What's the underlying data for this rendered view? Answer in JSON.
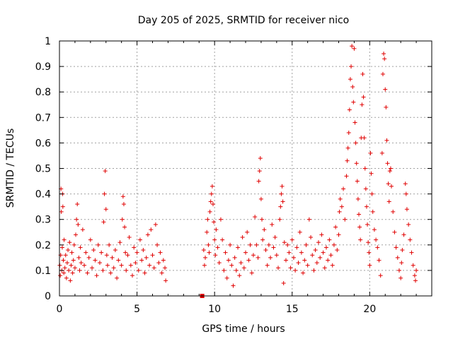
{
  "chart_data": {
    "type": "scatter",
    "title": "Day 205 of 2025, SRMTID for receiver nico",
    "xlabel": "GPS time / hours",
    "ylabel": "SRMTID / TECUs",
    "xlim": [
      0,
      24
    ],
    "ylim": [
      0,
      1
    ],
    "x_ticks": [
      0,
      5,
      10,
      15,
      20
    ],
    "x_tick_labels": [
      "0",
      "5",
      "10",
      "15",
      "20"
    ],
    "y_ticks": [
      0,
      0.1,
      0.2,
      0.3,
      0.4,
      0.5,
      0.6,
      0.7,
      0.8,
      0.9,
      1
    ],
    "y_tick_labels": [
      "0",
      "0.1",
      "0.2",
      "0.3",
      "0.4",
      "0.5",
      "0.6",
      "0.7",
      "0.8",
      "0.9",
      "1"
    ],
    "grid": true,
    "marker": "plus",
    "color": "#e00000",
    "outlier_marker": {
      "x": 9.2,
      "y": 0.0,
      "shape": "square"
    },
    "series": [
      {
        "name": "SRMTID",
        "points": [
          [
            0.02,
            0.12
          ],
          [
            0.05,
            0.08
          ],
          [
            0.08,
            0.16
          ],
          [
            0.1,
            0.42
          ],
          [
            0.12,
            0.33
          ],
          [
            0.15,
            0.1
          ],
          [
            0.18,
            0.19
          ],
          [
            0.2,
            0.4
          ],
          [
            0.22,
            0.35
          ],
          [
            0.25,
            0.14
          ],
          [
            0.28,
            0.09
          ],
          [
            0.3,
            0.22
          ],
          [
            0.35,
            0.11
          ],
          [
            0.4,
            0.16
          ],
          [
            0.45,
            0.07
          ],
          [
            0.5,
            0.13
          ],
          [
            0.55,
            0.18
          ],
          [
            0.6,
            0.1
          ],
          [
            0.65,
            0.21
          ],
          [
            0.7,
            0.06
          ],
          [
            0.75,
            0.12
          ],
          [
            0.8,
            0.17
          ],
          [
            0.85,
            0.09
          ],
          [
            0.9,
            0.14
          ],
          [
            0.95,
            0.2
          ],
          [
            1.0,
            0.11
          ],
          [
            1.05,
            0.24
          ],
          [
            1.1,
            0.3
          ],
          [
            1.15,
            0.36
          ],
          [
            1.2,
            0.28
          ],
          [
            1.25,
            0.15
          ],
          [
            1.3,
            0.1
          ],
          [
            1.35,
            0.19
          ],
          [
            1.4,
            0.13
          ],
          [
            1.5,
            0.26
          ],
          [
            1.6,
            0.12
          ],
          [
            1.7,
            0.17
          ],
          [
            1.8,
            0.09
          ],
          [
            1.9,
            0.15
          ],
          [
            2.0,
            0.22
          ],
          [
            2.1,
            0.11
          ],
          [
            2.2,
            0.18
          ],
          [
            2.3,
            0.14
          ],
          [
            2.4,
            0.08
          ],
          [
            2.5,
            0.2
          ],
          [
            2.6,
            0.13
          ],
          [
            2.7,
            0.17
          ],
          [
            2.8,
            0.1
          ],
          [
            2.85,
            0.29
          ],
          [
            2.9,
            0.4
          ],
          [
            2.95,
            0.49
          ],
          [
            3.0,
            0.34
          ],
          [
            3.05,
            0.16
          ],
          [
            3.1,
            0.12
          ],
          [
            3.2,
            0.2
          ],
          [
            3.3,
            0.09
          ],
          [
            3.4,
            0.15
          ],
          [
            3.5,
            0.11
          ],
          [
            3.6,
            0.18
          ],
          [
            3.7,
            0.07
          ],
          [
            3.8,
            0.14
          ],
          [
            3.9,
            0.21
          ],
          [
            4.0,
            0.12
          ],
          [
            4.05,
            0.3
          ],
          [
            4.1,
            0.39
          ],
          [
            4.15,
            0.36
          ],
          [
            4.2,
            0.27
          ],
          [
            4.25,
            0.17
          ],
          [
            4.3,
            0.1
          ],
          [
            4.4,
            0.16
          ],
          [
            4.5,
            0.23
          ],
          [
            4.6,
            0.12
          ],
          [
            4.7,
            0.08
          ],
          [
            4.8,
            0.19
          ],
          [
            4.9,
            0.13
          ],
          [
            5.0,
            0.17
          ],
          [
            5.1,
            0.1
          ],
          [
            5.2,
            0.22
          ],
          [
            5.3,
            0.14
          ],
          [
            5.4,
            0.18
          ],
          [
            5.5,
            0.09
          ],
          [
            5.6,
            0.15
          ],
          [
            5.7,
            0.24
          ],
          [
            5.8,
            0.12
          ],
          [
            5.9,
            0.26
          ],
          [
            6.0,
            0.16
          ],
          [
            6.1,
            0.11
          ],
          [
            6.2,
            0.28
          ],
          [
            6.3,
            0.2
          ],
          [
            6.4,
            0.13
          ],
          [
            6.5,
            0.17
          ],
          [
            6.6,
            0.09
          ],
          [
            6.7,
            0.14
          ],
          [
            6.8,
            0.11
          ],
          [
            6.85,
            0.06
          ],
          [
            9.3,
            0.18
          ],
          [
            9.35,
            0.12
          ],
          [
            9.4,
            0.15
          ],
          [
            9.5,
            0.25
          ],
          [
            9.55,
            0.3
          ],
          [
            9.6,
            0.2
          ],
          [
            9.65,
            0.17
          ],
          [
            9.7,
            0.33
          ],
          [
            9.75,
            0.37
          ],
          [
            9.8,
            0.4
          ],
          [
            9.85,
            0.43
          ],
          [
            9.9,
            0.36
          ],
          [
            9.95,
            0.29
          ],
          [
            10.0,
            0.22
          ],
          [
            10.05,
            0.16
          ],
          [
            10.1,
            0.26
          ],
          [
            10.2,
            0.19
          ],
          [
            10.3,
            0.13
          ],
          [
            10.4,
            0.3
          ],
          [
            10.5,
            0.22
          ],
          [
            10.6,
            0.1
          ],
          [
            10.7,
            0.17
          ],
          [
            10.8,
            0.07
          ],
          [
            10.9,
            0.14
          ],
          [
            11.0,
            0.2
          ],
          [
            11.1,
            0.12
          ],
          [
            11.2,
            0.04
          ],
          [
            11.3,
            0.15
          ],
          [
            11.4,
            0.1
          ],
          [
            11.5,
            0.19
          ],
          [
            11.6,
            0.08
          ],
          [
            11.7,
            0.13
          ],
          [
            11.8,
            0.23
          ],
          [
            11.9,
            0.11
          ],
          [
            12.0,
            0.17
          ],
          [
            12.1,
            0.25
          ],
          [
            12.2,
            0.14
          ],
          [
            12.3,
            0.2
          ],
          [
            12.4,
            0.09
          ],
          [
            12.5,
            0.16
          ],
          [
            12.6,
            0.31
          ],
          [
            12.7,
            0.2
          ],
          [
            12.8,
            0.15
          ],
          [
            12.85,
            0.45
          ],
          [
            12.9,
            0.49
          ],
          [
            12.95,
            0.54
          ],
          [
            13.0,
            0.38
          ],
          [
            13.05,
            0.3
          ],
          [
            13.1,
            0.22
          ],
          [
            13.2,
            0.26
          ],
          [
            13.3,
            0.18
          ],
          [
            13.4,
            0.12
          ],
          [
            13.5,
            0.2
          ],
          [
            13.6,
            0.15
          ],
          [
            13.7,
            0.28
          ],
          [
            13.8,
            0.19
          ],
          [
            13.9,
            0.23
          ],
          [
            14.0,
            0.16
          ],
          [
            14.1,
            0.11
          ],
          [
            14.2,
            0.3
          ],
          [
            14.25,
            0.35
          ],
          [
            14.3,
            0.4
          ],
          [
            14.35,
            0.43
          ],
          [
            14.4,
            0.37
          ],
          [
            14.45,
            0.05
          ],
          [
            14.5,
            0.21
          ],
          [
            14.6,
            0.14
          ],
          [
            14.7,
            0.2
          ],
          [
            14.8,
            0.17
          ],
          [
            14.9,
            0.11
          ],
          [
            15.0,
            0.22
          ],
          [
            15.1,
            0.15
          ],
          [
            15.2,
            0.1
          ],
          [
            15.3,
            0.19
          ],
          [
            15.4,
            0.13
          ],
          [
            15.5,
            0.25
          ],
          [
            15.6,
            0.17
          ],
          [
            15.7,
            0.09
          ],
          [
            15.8,
            0.14
          ],
          [
            15.9,
            0.2
          ],
          [
            16.0,
            0.12
          ],
          [
            16.1,
            0.3
          ],
          [
            16.2,
            0.23
          ],
          [
            16.3,
            0.16
          ],
          [
            16.4,
            0.1
          ],
          [
            16.5,
            0.18
          ],
          [
            16.6,
            0.13
          ],
          [
            16.7,
            0.21
          ],
          [
            16.8,
            0.15
          ],
          [
            16.9,
            0.24
          ],
          [
            17.0,
            0.17
          ],
          [
            17.1,
            0.11
          ],
          [
            17.2,
            0.19
          ],
          [
            17.3,
            0.14
          ],
          [
            17.4,
            0.22
          ],
          [
            17.5,
            0.16
          ],
          [
            17.6,
            0.12
          ],
          [
            17.7,
            0.2
          ],
          [
            17.8,
            0.27
          ],
          [
            17.9,
            0.18
          ],
          [
            18.0,
            0.24
          ],
          [
            18.05,
            0.33
          ],
          [
            18.1,
            0.38
          ],
          [
            18.2,
            0.35
          ],
          [
            18.3,
            0.42
          ],
          [
            18.4,
            0.3
          ],
          [
            18.5,
            0.47
          ],
          [
            18.55,
            0.53
          ],
          [
            18.6,
            0.58
          ],
          [
            18.65,
            0.64
          ],
          [
            18.7,
            0.73
          ],
          [
            18.75,
            0.85
          ],
          [
            18.8,
            0.9
          ],
          [
            18.85,
            0.98
          ],
          [
            18.9,
            0.82
          ],
          [
            18.95,
            0.76
          ],
          [
            19.0,
            0.97
          ],
          [
            19.05,
            0.68
          ],
          [
            19.1,
            0.6
          ],
          [
            19.15,
            0.52
          ],
          [
            19.2,
            0.45
          ],
          [
            19.25,
            0.38
          ],
          [
            19.3,
            0.32
          ],
          [
            19.35,
            0.27
          ],
          [
            19.4,
            0.22
          ],
          [
            19.45,
            0.62
          ],
          [
            19.5,
            0.75
          ],
          [
            19.55,
            0.87
          ],
          [
            19.6,
            0.78
          ],
          [
            19.65,
            0.62
          ],
          [
            19.7,
            0.5
          ],
          [
            19.75,
            0.42
          ],
          [
            19.8,
            0.35
          ],
          [
            19.85,
            0.28
          ],
          [
            19.9,
            0.21
          ],
          [
            19.95,
            0.17
          ],
          [
            20.0,
            0.12
          ],
          [
            20.05,
            0.56
          ],
          [
            20.1,
            0.48
          ],
          [
            20.15,
            0.4
          ],
          [
            20.2,
            0.33
          ],
          [
            20.3,
            0.26
          ],
          [
            20.4,
            0.22
          ],
          [
            20.5,
            0.19
          ],
          [
            20.6,
            0.14
          ],
          [
            20.7,
            0.08
          ],
          [
            20.8,
            0.56
          ],
          [
            20.85,
            0.87
          ],
          [
            20.9,
            0.95
          ],
          [
            20.95,
            0.93
          ],
          [
            21.0,
            0.81
          ],
          [
            21.05,
            0.74
          ],
          [
            21.1,
            0.61
          ],
          [
            21.15,
            0.52
          ],
          [
            21.2,
            0.44
          ],
          [
            21.25,
            0.37
          ],
          [
            21.3,
            0.49
          ],
          [
            21.35,
            0.5
          ],
          [
            21.4,
            0.43
          ],
          [
            21.5,
            0.33
          ],
          [
            21.6,
            0.25
          ],
          [
            21.7,
            0.19
          ],
          [
            21.8,
            0.15
          ],
          [
            21.9,
            0.1
          ],
          [
            22.0,
            0.07
          ],
          [
            22.05,
            0.13
          ],
          [
            22.1,
            0.18
          ],
          [
            22.2,
            0.24
          ],
          [
            22.3,
            0.44
          ],
          [
            22.35,
            0.4
          ],
          [
            22.4,
            0.34
          ],
          [
            22.5,
            0.28
          ],
          [
            22.6,
            0.22
          ],
          [
            22.7,
            0.17
          ],
          [
            22.8,
            0.12
          ],
          [
            22.9,
            0.08
          ],
          [
            22.95,
            0.06
          ],
          [
            23.0,
            0.1
          ]
        ]
      }
    ]
  }
}
